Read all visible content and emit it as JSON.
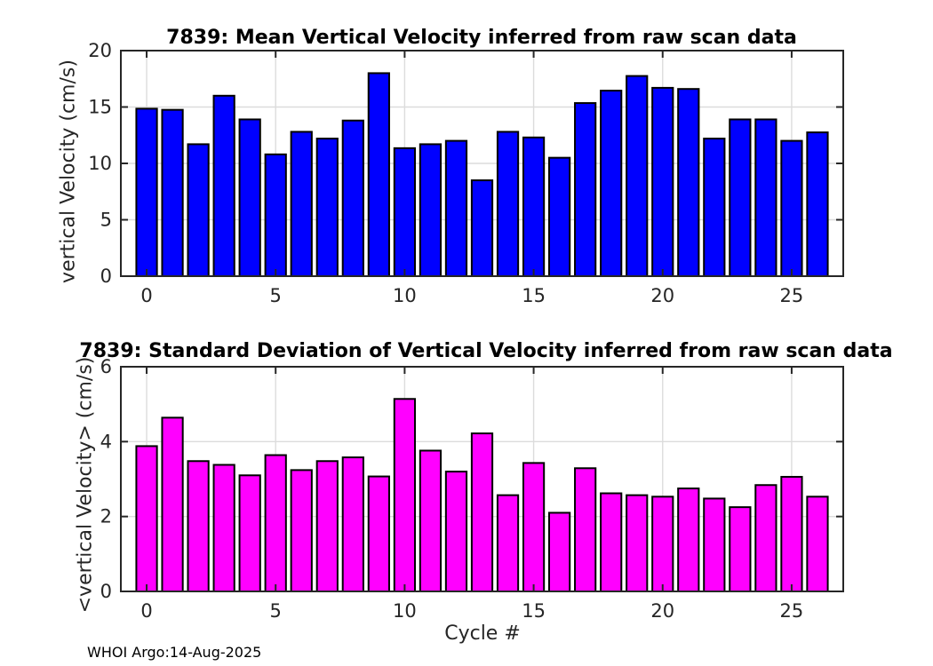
{
  "figure": {
    "footer": "WHOI Argo:14-Aug-2025",
    "background": "#ffffff"
  },
  "style": {
    "axis_color": "#262626",
    "grid_color": "#dcdcdc",
    "bar_edge_color": "#000000",
    "tick_label_color": "#262626"
  },
  "chart_data": [
    {
      "type": "bar",
      "title": "7839: Mean Vertical Velocity inferred from raw scan data",
      "ylabel": "vertical Velocity (cm/s)",
      "xlabel": "",
      "bar_color": "#0000ff",
      "xlim": [
        -1,
        27
      ],
      "ylim": [
        0,
        20
      ],
      "xticks": [
        0,
        5,
        10,
        15,
        20,
        25
      ],
      "yticks": [
        0,
        5,
        10,
        15,
        20
      ],
      "grid": true,
      "bar_width": 0.8,
      "x": [
        0,
        1,
        2,
        3,
        4,
        5,
        6,
        7,
        8,
        9,
        10,
        11,
        12,
        13,
        14,
        15,
        16,
        17,
        18,
        19,
        20,
        21,
        22,
        23,
        24,
        25,
        26
      ],
      "values": [
        14.85,
        14.75,
        11.7,
        16.0,
        13.9,
        10.8,
        12.8,
        12.2,
        13.8,
        18.0,
        11.35,
        11.7,
        12.0,
        8.5,
        12.8,
        12.3,
        10.5,
        15.35,
        16.45,
        17.75,
        16.7,
        16.6,
        12.2,
        13.9,
        13.9,
        12.0,
        12.75
      ]
    },
    {
      "type": "bar",
      "title": "7839: Standard Deviation of Vertical Velocity inferred from raw scan data",
      "ylabel": "<vertical Velocity> (cm/s)",
      "xlabel": "Cycle #",
      "bar_color": "#ff00ff",
      "xlim": [
        -1,
        27
      ],
      "ylim": [
        0,
        6
      ],
      "xticks": [
        0,
        5,
        10,
        15,
        20,
        25
      ],
      "yticks": [
        0,
        2,
        4,
        6
      ],
      "grid": true,
      "bar_width": 0.8,
      "x": [
        0,
        1,
        2,
        3,
        4,
        5,
        6,
        7,
        8,
        9,
        10,
        11,
        12,
        13,
        14,
        15,
        16,
        17,
        18,
        19,
        20,
        21,
        22,
        23,
        24,
        25,
        26
      ],
      "values": [
        3.88,
        4.64,
        3.48,
        3.38,
        3.1,
        3.64,
        3.24,
        3.48,
        3.58,
        3.07,
        5.14,
        3.76,
        3.2,
        4.22,
        2.57,
        3.43,
        2.1,
        3.29,
        2.62,
        2.57,
        2.53,
        2.75,
        2.48,
        2.25,
        2.84,
        3.06,
        2.53
      ]
    }
  ]
}
